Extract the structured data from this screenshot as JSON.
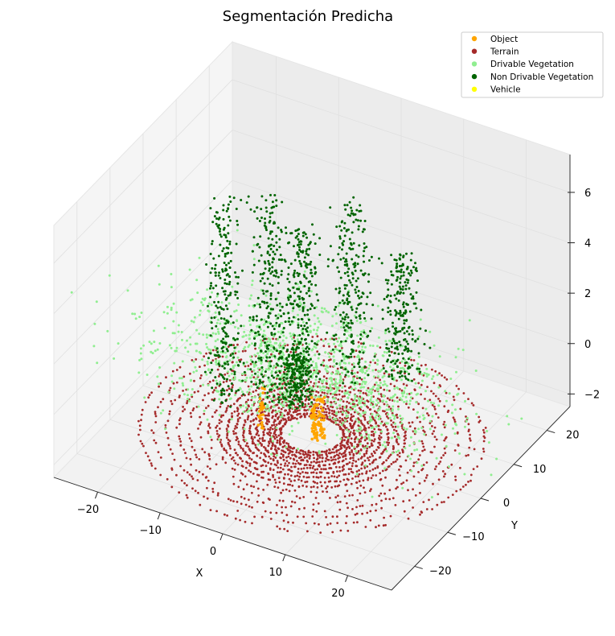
{
  "chart_data": {
    "type": "scatter",
    "projection": "3d",
    "title": "Segmentación Predicha",
    "xlabel": "X",
    "ylabel": "Y",
    "zlabel": "",
    "xlim": [
      -27,
      27
    ],
    "ylim": [
      -27,
      27
    ],
    "zlim": [
      -2.5,
      7.5
    ],
    "x_ticks": [
      -20,
      -10,
      0,
      10,
      20
    ],
    "y_ticks": [
      -20,
      -10,
      0,
      10,
      20
    ],
    "z_ticks": [
      -2,
      0,
      2,
      4,
      6
    ],
    "legend_position": "top-right",
    "grid": true,
    "series": [
      {
        "name": "Object",
        "color": "#ffa500",
        "clusters": [
          {
            "x": 1.5,
            "y": -2,
            "z": [
              -2,
              -0.3
            ],
            "n": 45
          },
          {
            "x": 2.2,
            "y": -1.5,
            "z": [
              -2,
              -0.3
            ],
            "n": 45
          },
          {
            "x": -6,
            "y": -4,
            "z": [
              -2,
              -0.3
            ],
            "n": 30
          }
        ]
      },
      {
        "name": "Terrain",
        "color": "#a52a2a",
        "rings": {
          "r_inner": 4.5,
          "r_outer": 25,
          "z": -2.2
        }
      },
      {
        "name": "Drivable Vegetation",
        "color": "#90ee90",
        "clusters": [
          {
            "center": [
              -2,
              6
            ],
            "spread": [
              14,
              7
            ],
            "z": [
              -2,
              2
            ]
          }
        ]
      },
      {
        "name": "Non Drivable Vegetation",
        "color": "#006400",
        "clusters": [
          {
            "x": -14,
            "y": 0,
            "z": [
              -2,
              6
            ]
          },
          {
            "x": -9,
            "y": 4,
            "z": [
              -2,
              6
            ]
          },
          {
            "x": -4,
            "y": 4,
            "z": [
              -1,
              5
            ]
          },
          {
            "x": 2,
            "y": 8,
            "z": [
              -1,
              6
            ]
          },
          {
            "x": 8,
            "y": 12,
            "z": [
              -1,
              4
            ]
          },
          {
            "x": -2,
            "y": -1,
            "z": [
              -1,
              1
            ]
          }
        ]
      },
      {
        "name": "Vehicle",
        "color": "#ffff00",
        "clusters": []
      }
    ]
  }
}
